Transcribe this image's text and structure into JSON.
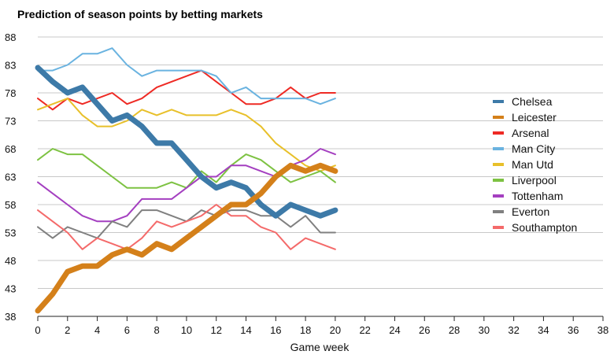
{
  "chart_data": {
    "type": "line",
    "title": "Prediction of season points by betting markets",
    "xlabel": "Game week",
    "ylabel": "",
    "xlim": [
      0,
      38
    ],
    "ylim": [
      38,
      88
    ],
    "xticks": [
      0,
      2,
      4,
      6,
      8,
      10,
      12,
      14,
      16,
      18,
      20,
      22,
      24,
      26,
      28,
      30,
      32,
      34,
      36,
      38
    ],
    "yticks": [
      38,
      43,
      48,
      53,
      58,
      63,
      68,
      73,
      78,
      83,
      88
    ],
    "grid": "horizontal",
    "legend_position": "right",
    "x": [
      0,
      1,
      2,
      3,
      4,
      5,
      6,
      7,
      8,
      9,
      10,
      11,
      12,
      13,
      14,
      15,
      16,
      17,
      18,
      19,
      20
    ],
    "series": [
      {
        "name": "Chelsea",
        "color": "#3d7aa8",
        "width": "thick",
        "values": [
          82.5,
          80,
          78,
          79,
          76,
          73,
          74,
          72,
          69,
          69,
          66,
          63,
          61,
          62,
          61,
          58,
          56,
          58,
          57,
          56,
          57
        ]
      },
      {
        "name": "Leicester",
        "color": "#d4801a",
        "width": "thick",
        "values": [
          39,
          42,
          46,
          47,
          47,
          49,
          50,
          49,
          51,
          50,
          52,
          54,
          56,
          58,
          58,
          60,
          63,
          65,
          64,
          65,
          64
        ]
      },
      {
        "name": "Arsenal",
        "color": "#ee2a24",
        "width": "thin",
        "values": [
          77,
          75,
          77,
          76,
          77,
          78,
          76,
          77,
          79,
          80,
          81,
          82,
          80,
          78,
          76,
          76,
          77,
          79,
          77,
          78,
          78
        ]
      },
      {
        "name": "Man City",
        "color": "#6ab3e0",
        "width": "thin",
        "values": [
          82,
          82,
          83,
          85,
          85,
          86,
          83,
          81,
          82,
          82,
          82,
          82,
          81,
          78,
          79,
          77,
          77,
          77,
          77,
          76,
          77
        ]
      },
      {
        "name": "Man Utd",
        "color": "#e8c02a",
        "width": "thin",
        "values": [
          75,
          76,
          77,
          74,
          72,
          72,
          73,
          75,
          74,
          75,
          74,
          74,
          74,
          75,
          74,
          72,
          69,
          67,
          65,
          64,
          65
        ]
      },
      {
        "name": "Liverpool",
        "color": "#7dc242",
        "width": "thin",
        "values": [
          66,
          68,
          67,
          67,
          65,
          63,
          61,
          61,
          61,
          62,
          61,
          64,
          62,
          65,
          67,
          66,
          64,
          62,
          63,
          64,
          62
        ]
      },
      {
        "name": "Tottenham",
        "color": "#a43fc0",
        "width": "thin",
        "values": [
          62,
          60,
          58,
          56,
          55,
          55,
          56,
          59,
          59,
          59,
          61,
          63,
          63,
          65,
          65,
          64,
          63,
          65,
          66,
          68,
          67
        ]
      },
      {
        "name": "Everton",
        "color": "#808080",
        "width": "thin",
        "values": [
          54,
          52,
          54,
          53,
          52,
          55,
          54,
          57,
          57,
          56,
          55,
          57,
          56,
          57,
          57,
          56,
          56,
          54,
          56,
          53,
          53
        ]
      },
      {
        "name": "Southampton",
        "color": "#f46a6a",
        "width": "thin",
        "values": [
          57,
          55,
          53,
          50,
          52,
          51,
          50,
          52,
          55,
          54,
          55,
          56,
          58,
          56,
          56,
          54,
          53,
          50,
          52,
          51,
          50
        ]
      }
    ]
  }
}
